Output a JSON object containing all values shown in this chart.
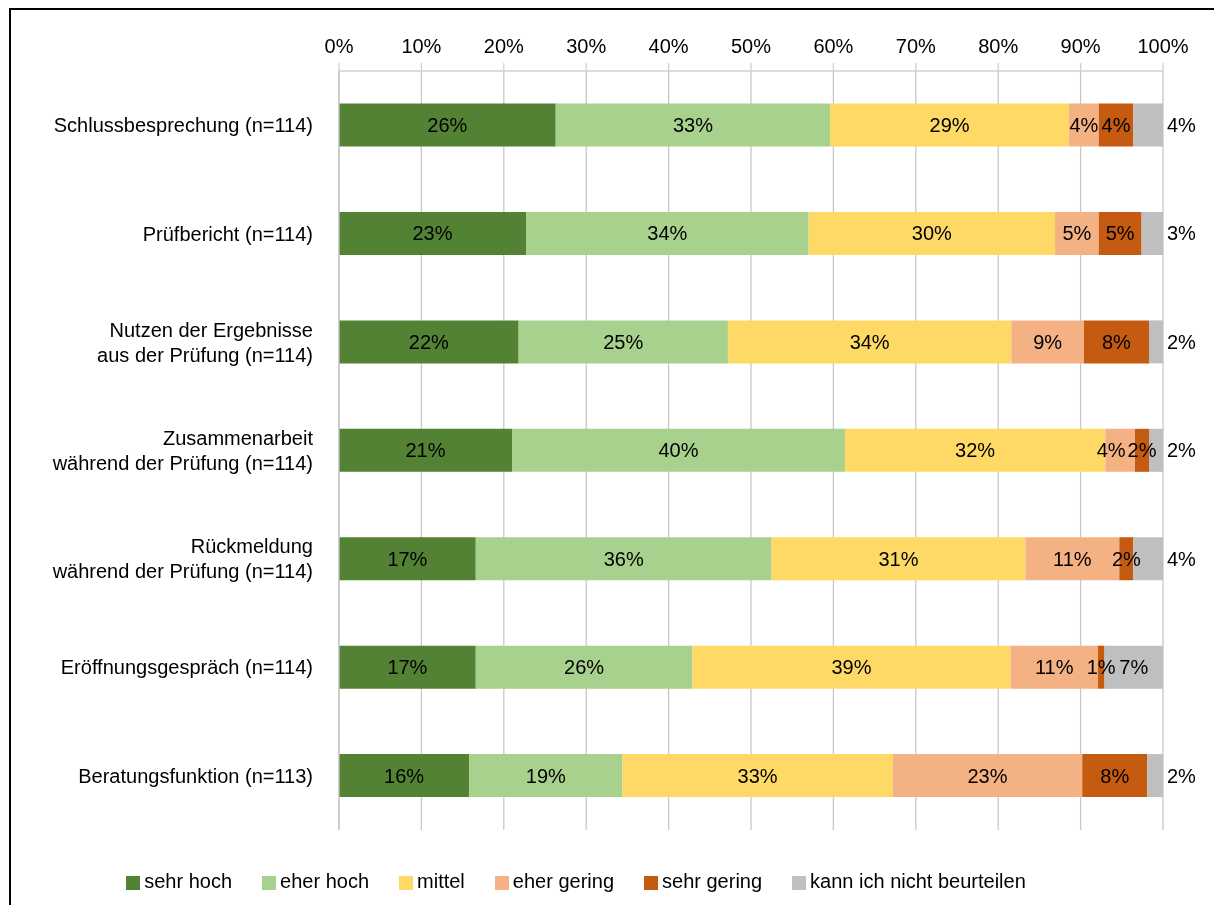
{
  "chart_data": {
    "type": "bar",
    "orientation": "horizontal",
    "stacked": true,
    "categories": [
      "Schlussbesprechung (n=114)",
      "Prüfbericht (n=114)",
      "Nutzen der Ergebnisse aus der Prüfung (n=114)",
      "Zusammenarbeit während der Prüfung (n=114)",
      "Rückmeldung während der Prüfung (n=114)",
      "Eröffnungsgespräch (n=114)",
      "Beratungsfunktion (n=113)"
    ],
    "series": [
      {
        "name": "sehr hoch",
        "color": "#548235",
        "values": [
          26.3,
          22.7,
          21.8,
          21.0,
          16.6,
          16.6,
          15.8
        ],
        "value_labels": [
          "26%",
          "23%",
          "22%",
          "21%",
          "17%",
          "17%",
          "16%"
        ]
      },
      {
        "name": "eher hoch",
        "color": "#a9d18e",
        "values": [
          33.3,
          34.3,
          25.4,
          40.4,
          35.9,
          26.3,
          18.6
        ],
        "value_labels": [
          "33%",
          "34%",
          "25%",
          "40%",
          "36%",
          "26%",
          "19%"
        ]
      },
      {
        "name": "mittel",
        "color": "#ffd966",
        "values": [
          29.0,
          29.9,
          34.4,
          31.6,
          30.8,
          38.6,
          32.8
        ],
        "value_labels": [
          "29%",
          "30%",
          "34%",
          "32%",
          "31%",
          "39%",
          "33%"
        ]
      },
      {
        "name": "eher gering",
        "color": "#f4b183",
        "values": [
          3.6,
          5.3,
          8.8,
          3.6,
          11.4,
          10.6,
          23.0
        ],
        "value_labels": [
          "4%",
          "5%",
          "9%",
          "4%",
          "11%",
          "11%",
          "23%"
        ]
      },
      {
        "name": "sehr gering",
        "color": "#c55a11",
        "values": [
          4.2,
          5.2,
          7.9,
          1.7,
          1.7,
          0.8,
          7.9
        ],
        "value_labels": [
          "4%",
          "5%",
          "8%",
          "2%",
          "2%",
          "1%",
          "8%"
        ]
      },
      {
        "name": "kann ich nicht beurteilen",
        "color": "#bfbfbf",
        "values": [
          3.6,
          2.6,
          1.7,
          1.7,
          3.6,
          7.1,
          1.9
        ],
        "value_labels": [
          "4%",
          "3%",
          "2%",
          "2%",
          "4%",
          "7%",
          "2%"
        ]
      }
    ],
    "xlim": [
      0,
      100
    ],
    "xticks": [
      {
        "value": 0,
        "label": "0%"
      },
      {
        "value": 10,
        "label": "10%"
      },
      {
        "value": 20,
        "label": "20%"
      },
      {
        "value": 30,
        "label": "30%"
      },
      {
        "value": 40,
        "label": "40%"
      },
      {
        "value": 50,
        "label": "50%"
      },
      {
        "value": 60,
        "label": "60%"
      },
      {
        "value": 70,
        "label": "70%"
      },
      {
        "value": 80,
        "label": "80%"
      },
      {
        "value": 90,
        "label": "90%"
      },
      {
        "value": 100,
        "label": "100%"
      }
    ],
    "grid": "x",
    "legend": "bottom"
  }
}
